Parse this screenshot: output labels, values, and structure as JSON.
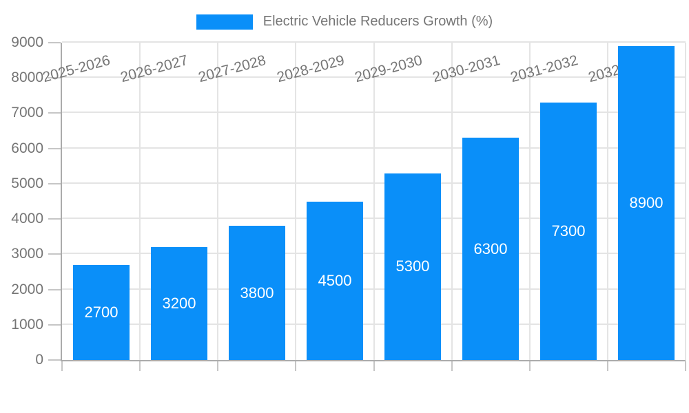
{
  "chart_data": {
    "type": "bar",
    "title": "Electric Vehicle Reducers Growth (%)",
    "legend": {
      "position": "top",
      "entries": [
        "Electric Vehicle Reducers Growth (%)"
      ]
    },
    "categories": [
      "2025-2026",
      "2026-2027",
      "2027-2028",
      "2028-2029",
      "2029-2030",
      "2030-2031",
      "2031-2032",
      "2032-2033"
    ],
    "series": [
      {
        "name": "Electric Vehicle Reducers Growth (%)",
        "values": [
          2700,
          3200,
          3800,
          4500,
          5300,
          6300,
          7300,
          8900
        ]
      }
    ],
    "bar_labels": [
      "2700",
      "3200",
      "3800",
      "4500",
      "5300",
      "6300",
      "7300",
      "8900"
    ],
    "xlabel": "",
    "ylabel": "",
    "ylim": [
      0,
      9000
    ],
    "ytick_step": 1000,
    "yticks": [
      "0",
      "1000",
      "2000",
      "3000",
      "4000",
      "5000",
      "6000",
      "7000",
      "8000",
      "9000"
    ],
    "grid": true,
    "x_label_rotation_deg": -15,
    "colors": {
      "bar": "#0a8ff9",
      "bar_label": "#ffffff",
      "axis": "#ababab",
      "grid": "#e4e4e4",
      "tick": "#c6c6c6",
      "text": "#757575",
      "background": "#ffffff"
    }
  }
}
